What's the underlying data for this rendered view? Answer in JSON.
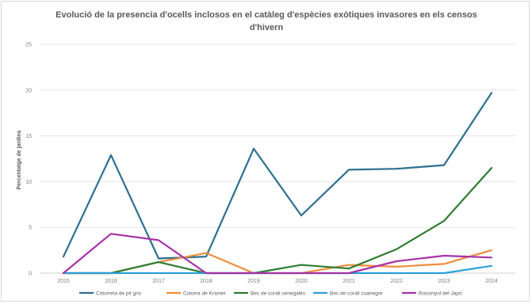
{
  "chart_data": {
    "type": "line",
    "title_lines": [
      "Evolució de la presencia d'ocells inclosos en el catàleg d'espècies exòtiques invasores en els censos",
      "d'hivern"
    ],
    "xlabel": "",
    "ylabel": "Percentatge de jardins",
    "ylim": [
      0,
      25
    ],
    "yticks": [
      0,
      5,
      10,
      15,
      20,
      25
    ],
    "categories": [
      "2015",
      "2016",
      "2017",
      "2018",
      "2019",
      "2020",
      "2021",
      "2022",
      "2023",
      "2024"
    ],
    "grid": "horizontal",
    "legend_position": "bottom",
    "series": [
      {
        "name": "Cotorreta de pit gris",
        "color": "#2e6f8e",
        "values": [
          1.8,
          12.9,
          1.6,
          1.8,
          13.6,
          6.3,
          11.3,
          11.4,
          11.8,
          19.7
        ]
      },
      {
        "name": "Cotorra de Kramer",
        "color": "#f08c3c",
        "values": [
          0,
          0,
          1.2,
          2.2,
          0,
          0,
          0.9,
          0.7,
          1.0,
          2.5
        ]
      },
      {
        "name": "Bec de corall senegalès",
        "color": "#2e7d32",
        "values": [
          0,
          0,
          1.2,
          0,
          0,
          0.9,
          0.5,
          2.6,
          5.7,
          11.5
        ]
      },
      {
        "name": "Bec de corall cuanegre",
        "color": "#2aa0d8",
        "values": [
          0,
          0,
          0,
          0,
          0,
          0,
          0,
          0,
          0,
          0.8
        ]
      },
      {
        "name": "Rossinyol del Japó",
        "color": "#a633a6",
        "values": [
          0,
          4.3,
          3.6,
          0,
          0,
          0,
          0,
          1.3,
          1.9,
          1.7
        ]
      }
    ]
  }
}
